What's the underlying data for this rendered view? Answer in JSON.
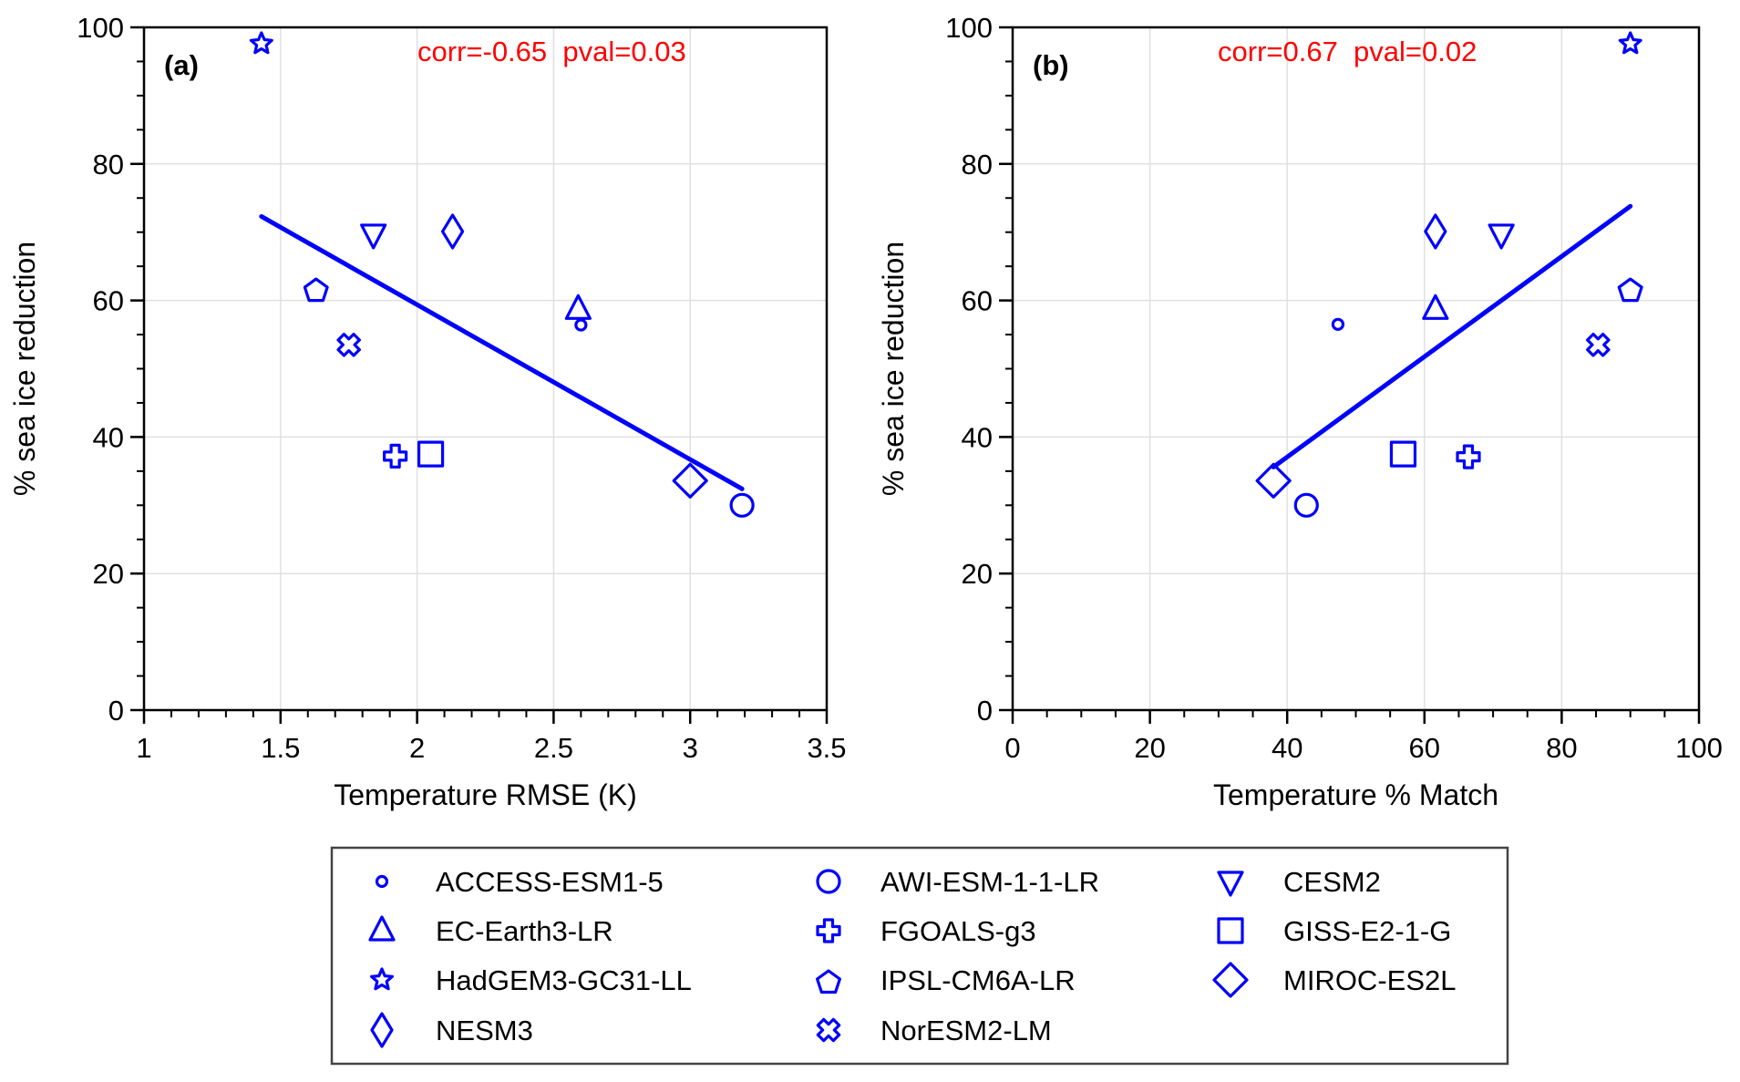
{
  "colors": {
    "marker": "#0000ff",
    "fit_line": "#0000ff",
    "annotation": "#ff0000",
    "grid": "#e0e0e0",
    "axis": "#000000"
  },
  "chart_data": [
    {
      "type": "scatter",
      "panel_label": "(a)",
      "annotation": "corr=-0.65  pval=0.03",
      "xlabel": "Temperature RMSE (K)",
      "ylabel": "% sea ice reduction",
      "xlim": [
        1,
        3.5
      ],
      "ylim": [
        0,
        100
      ],
      "xticks": [
        1,
        1.5,
        2,
        2.5,
        3,
        3.5
      ],
      "xtick_labels": [
        "1",
        "1.5",
        "2",
        "2.5",
        "3",
        "3.5"
      ],
      "x_minor_step": 0.1,
      "yticks": [
        0,
        20,
        40,
        60,
        80,
        100
      ],
      "ytick_labels": [
        "0",
        "20",
        "40",
        "60",
        "80",
        "100"
      ],
      "y_minor_step": 5,
      "grid": true,
      "points": [
        {
          "model": "ACCESS-ESM1-5",
          "marker": "small-circle",
          "x": 2.6,
          "y": 56.4
        },
        {
          "model": "AWI-ESM-1-1-LR",
          "marker": "circle",
          "x": 3.19,
          "y": 30.0
        },
        {
          "model": "CESM2",
          "marker": "triangle-down",
          "x": 1.84,
          "y": 69.7
        },
        {
          "model": "EC-Earth3-LR",
          "marker": "triangle-up",
          "x": 2.59,
          "y": 58.7
        },
        {
          "model": "FGOALS-g3",
          "marker": "plus",
          "x": 1.92,
          "y": 37.2
        },
        {
          "model": "GISS-E2-1-G",
          "marker": "square",
          "x": 2.05,
          "y": 37.5
        },
        {
          "model": "HadGEM3-GC31-LL",
          "marker": "star",
          "x": 1.43,
          "y": 97.6
        },
        {
          "model": "IPSL-CM6A-LR",
          "marker": "pentagon",
          "x": 1.63,
          "y": 61.8
        },
        {
          "model": "MIROC-ES2L",
          "marker": "diamond",
          "x": 3.0,
          "y": 33.6
        },
        {
          "model": "NESM3",
          "marker": "thin-diamond",
          "x": 2.13,
          "y": 70.1
        },
        {
          "model": "NorESM2-LM",
          "marker": "x-cross",
          "x": 1.75,
          "y": 53.5
        }
      ],
      "fit_line": {
        "x": [
          1.43,
          3.19
        ],
        "y": [
          72.3,
          32.4
        ]
      }
    },
    {
      "type": "scatter",
      "panel_label": "(b)",
      "annotation": "corr=0.67  pval=0.02",
      "xlabel": "Temperature % Match",
      "ylabel": "% sea ice reduction",
      "xlim": [
        0,
        100
      ],
      "ylim": [
        0,
        100
      ],
      "xticks": [
        0,
        20,
        40,
        60,
        80,
        100
      ],
      "xtick_labels": [
        "0",
        "20",
        "40",
        "60",
        "80",
        "100"
      ],
      "x_minor_step": 5,
      "yticks": [
        0,
        20,
        40,
        60,
        80,
        100
      ],
      "ytick_labels": [
        "0",
        "20",
        "40",
        "60",
        "80",
        "100"
      ],
      "y_minor_step": 5,
      "grid": true,
      "points": [
        {
          "model": "ACCESS-ESM1-5",
          "marker": "small-circle",
          "x": 47.4,
          "y": 56.5
        },
        {
          "model": "AWI-ESM-1-1-LR",
          "marker": "circle",
          "x": 42.8,
          "y": 30.0
        },
        {
          "model": "CESM2",
          "marker": "triangle-down",
          "x": 71.2,
          "y": 69.7
        },
        {
          "model": "EC-Earth3-LR",
          "marker": "triangle-up",
          "x": 61.6,
          "y": 58.7
        },
        {
          "model": "FGOALS-g3",
          "marker": "plus",
          "x": 66.4,
          "y": 37.1
        },
        {
          "model": "GISS-E2-1-G",
          "marker": "square",
          "x": 56.9,
          "y": 37.5
        },
        {
          "model": "HadGEM3-GC31-LL",
          "marker": "star",
          "x": 90.0,
          "y": 97.6
        },
        {
          "model": "IPSL-CM6A-LR",
          "marker": "pentagon",
          "x": 90.0,
          "y": 61.8
        },
        {
          "model": "MIROC-ES2L",
          "marker": "diamond",
          "x": 38.0,
          "y": 33.6
        },
        {
          "model": "NESM3",
          "marker": "thin-diamond",
          "x": 61.6,
          "y": 70.1
        },
        {
          "model": "NorESM2-LM",
          "marker": "x-cross",
          "x": 85.3,
          "y": 53.5
        }
      ],
      "fit_line": {
        "x": [
          38.0,
          90.0
        ],
        "y": [
          35.6,
          73.8
        ]
      }
    }
  ],
  "legend": {
    "placement": "bottom-center",
    "columns": 3,
    "entries": [
      {
        "label": "ACCESS-ESM1-5",
        "marker": "small-circle"
      },
      {
        "label": "AWI-ESM-1-1-LR",
        "marker": "circle"
      },
      {
        "label": "CESM2",
        "marker": "triangle-down"
      },
      {
        "label": "EC-Earth3-LR",
        "marker": "triangle-up"
      },
      {
        "label": "FGOALS-g3",
        "marker": "plus"
      },
      {
        "label": "GISS-E2-1-G",
        "marker": "square"
      },
      {
        "label": "HadGEM3-GC31-LL",
        "marker": "star"
      },
      {
        "label": "IPSL-CM6A-LR",
        "marker": "pentagon"
      },
      {
        "label": "MIROC-ES2L",
        "marker": "diamond"
      },
      {
        "label": "NESM3",
        "marker": "thin-diamond"
      },
      {
        "label": "NorESM2-LM",
        "marker": "x-cross"
      }
    ]
  }
}
